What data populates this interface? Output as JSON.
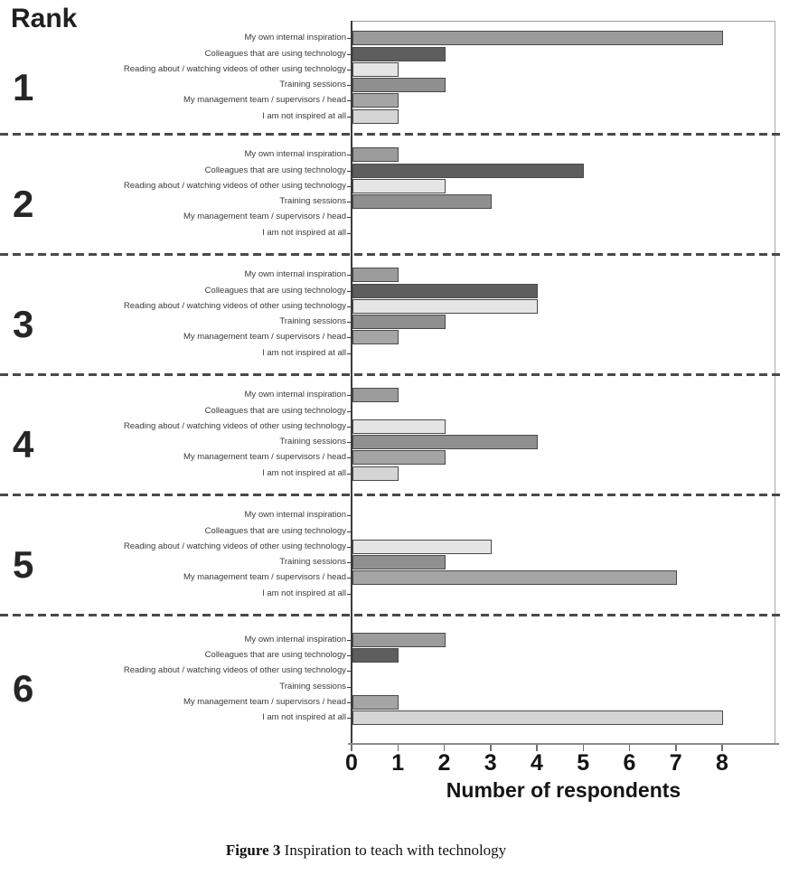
{
  "chart_data": {
    "type": "bar",
    "orientation": "horizontal",
    "rank_axis_title": "Rank",
    "xlabel": "Number of respondents",
    "x_ticks": [
      0,
      1,
      2,
      3,
      4,
      5,
      6,
      7,
      8
    ],
    "xlim": [
      0,
      9.15
    ],
    "grid": false,
    "legend": "none",
    "group_separator_style": "dashed",
    "categories": [
      "My own internal inspiration",
      "Colleagues that are using technology",
      "Reading about / watching videos of other using technology",
      "Training sessions",
      "My management team / supervisors / head",
      "I am not inspired at all"
    ],
    "category_colors": [
      "#9b9b9b",
      "#5e5e5e",
      "#e5e5e5",
      "#8f8f8f",
      "#a5a5a5",
      "#d5d5d5"
    ],
    "bar_border_color": "#4a4a4a",
    "groups": [
      {
        "rank": "1",
        "values": [
          8,
          2,
          1,
          2,
          1,
          1
        ]
      },
      {
        "rank": "2",
        "values": [
          1,
          5,
          2,
          3,
          0,
          0
        ]
      },
      {
        "rank": "3",
        "values": [
          1,
          4,
          4,
          2,
          1,
          0
        ]
      },
      {
        "rank": "4",
        "values": [
          1,
          0,
          2,
          4,
          2,
          1
        ]
      },
      {
        "rank": "5",
        "values": [
          0,
          0,
          3,
          2,
          7,
          0
        ]
      },
      {
        "rank": "6",
        "values": [
          2,
          1,
          0,
          0,
          1,
          8
        ]
      }
    ]
  },
  "caption": {
    "label": "Figure 3",
    "text": "Inspiration to teach with technology"
  }
}
